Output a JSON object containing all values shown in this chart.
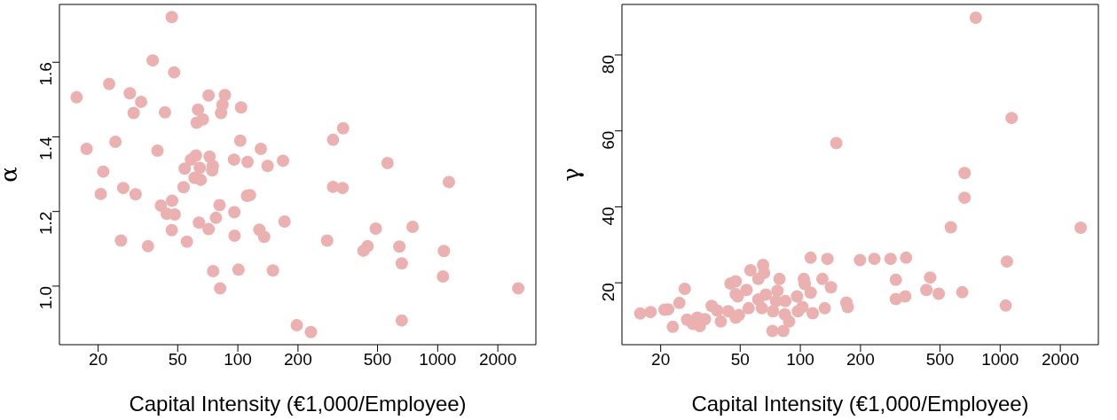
{
  "chart_data": [
    {
      "type": "scatter",
      "xlabel": "Capital Intensity (€1,000/Employee)",
      "ylabel": "α",
      "log": "x",
      "grid": false,
      "marker": "circle",
      "xlim": [
        12.8,
        3100
      ],
      "ylim": [
        0.843,
        1.755
      ],
      "xticks": [
        20,
        50,
        100,
        200,
        500,
        1000,
        2000
      ],
      "yticks": [
        {
          "value": 1,
          "label": "1.0"
        },
        1.2,
        1.4,
        1.6
      ],
      "x": [
        46.7,
        37.5,
        48.0,
        22.7,
        15.6,
        28.8,
        32.8,
        30.1,
        43.2,
        71.4,
        86.1,
        83.8,
        82.4,
        103.8,
        63.2,
        66.8,
        62.2,
        17.5,
        24.4,
        39.6,
        102.8,
        130.3,
        21.2,
        20.6,
        26.7,
        30.8,
        26.0,
        35.5,
        41.2,
        46.9,
        44.1,
        48.3,
        46.7,
        55.6,
        53.5,
        54.2,
        58.3,
        61.7,
        64.5,
        60.7,
        65.2,
        72.2,
        74.9,
        74.4,
        63.9,
        71.4,
        81.0,
        77.7,
        96.0,
        95.7,
        111.8,
        140.9,
        168.3,
        111.1,
        115,
        128.1,
        135.4,
        171.2,
        96.3,
        75.2,
        100.7,
        149.8,
        81.5,
        197.2,
        232.1,
        336.3,
        299.5,
        561.2,
        1138,
        299.5,
        334,
        279.8,
        490,
        749,
        425,
        446,
        643,
        661,
        1074,
        1063,
        2529,
        661
      ],
      "series": [
        {
          "color": "#ebb1b0",
          "values": [
            1.721,
            1.605,
            1.573,
            1.542,
            1.506,
            1.517,
            1.494,
            1.464,
            1.466,
            1.511,
            1.512,
            1.486,
            1.464,
            1.479,
            1.473,
            1.447,
            1.438,
            1.368,
            1.387,
            1.363,
            1.39,
            1.368,
            1.307,
            1.247,
            1.263,
            1.246,
            1.122,
            1.107,
            1.216,
            1.229,
            1.194,
            1.192,
            1.15,
            1.119,
            1.265,
            1.315,
            1.339,
            1.35,
            1.317,
            1.29,
            1.285,
            1.347,
            1.322,
            1.31,
            1.17,
            1.153,
            1.217,
            1.183,
            1.198,
            1.339,
            1.333,
            1.322,
            1.336,
            1.242,
            1.244,
            1.151,
            1.132,
            1.173,
            1.135,
            1.04,
            1.044,
            1.042,
            0.994,
            0.895,
            0.877,
            1.423,
            1.392,
            1.33,
            1.279,
            1.266,
            1.263,
            1.122,
            1.154,
            1.159,
            1.095,
            1.107,
            1.106,
            1.061,
            1.094,
            1.026,
            0.994,
            0.908
          ]
        }
      ]
    },
    {
      "type": "scatter",
      "xlabel": "Capital Intensity (€1,000/Employee)",
      "ylabel": "γ",
      "log": "x",
      "grid": false,
      "marker": "circle",
      "xlim": [
        12.8,
        3100
      ],
      "ylim": [
        3.7,
        93.3
      ],
      "xticks": [
        20,
        50,
        100,
        200,
        500,
        1000,
        2000
      ],
      "yticks": [
        20,
        40,
        60,
        80
      ],
      "x": [
        15.8,
        17.8,
        20.9,
        21.8,
        23.0,
        24.8,
        26.4,
        27.1,
        29.0,
        30.5,
        31.4,
        33.3,
        36.0,
        38.4,
        40.0,
        43.6,
        44.7,
        47.5,
        47.5,
        48.6,
        47.5,
        49.3,
        53.8,
        56.3,
        55.1,
        61.6,
        65.1,
        65.9,
        61.6,
        64.2,
        67.1,
        72.5,
        73.0,
        75.5,
        76.8,
        78.6,
        82.2,
        84.1,
        83.6,
        87.9,
        96.3,
        97.3,
        104.1,
        105.2,
        102.4,
        112.6,
        112.6,
        115.3,
        128.9,
        136.6,
        132.5,
        142.3,
        151.3,
        170.0,
        172.6,
        198.9,
        234.8,
        282.7,
        338.2,
        300.5,
        300.5,
        335,
        446.4,
        427.4,
        492.7,
        566.5,
        663.5,
        663.5,
        646,
        755,
        1141,
        1081,
        1066,
        2529
      ],
      "series": [
        {
          "color": "#ebb1b0",
          "values": [
            11.9,
            12.3,
            12.9,
            13.0,
            8.4,
            14.7,
            18.4,
            10.3,
            9.2,
            10.8,
            8.6,
            10.4,
            13.9,
            12.7,
            9.8,
            12.5,
            19.8,
            20.4,
            17.0,
            16.4,
            10.8,
            11.5,
            18.1,
            23.3,
            13.3,
            21.0,
            24.7,
            22.6,
            15.6,
            13.3,
            16.9,
            7.3,
            12.5,
            15.2,
            17.9,
            21.0,
            7.3,
            15.2,
            11.7,
            9.8,
            16.4,
            12.5,
            21.0,
            19.7,
            13.6,
            26.6,
            17.4,
            12.0,
            21.0,
            26.3,
            13.3,
            18.8,
            56.8,
            14.8,
            13.6,
            26.0,
            26.3,
            26.3,
            26.6,
            20.8,
            15.7,
            16.4,
            21.4,
            18.1,
            17.1,
            34.6,
            48.9,
            42.4,
            17.5,
            89.8,
            63.4,
            25.6,
            14.0,
            34.5
          ]
        }
      ]
    }
  ]
}
